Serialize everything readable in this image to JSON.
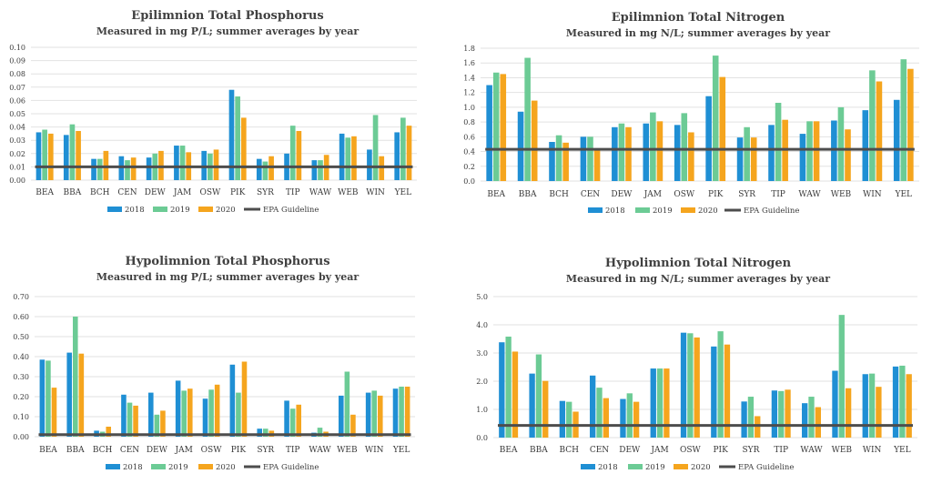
{
  "colors": {
    "2018": "#1f8fd4",
    "2019": "#6ccb95",
    "2020": "#f5a51e",
    "guideline": "#4d4d4d"
  },
  "chart_data": [
    {
      "type": "bar",
      "title": "Epilimnion Total Phosphorus",
      "subtitle": "Measured in mg P/L; summer averages by year",
      "categories": [
        "BEA",
        "BBA",
        "BCH",
        "CEN",
        "DEW",
        "JAM",
        "OSW",
        "PIK",
        "SYR",
        "TIP",
        "WAW",
        "WEB",
        "WIN",
        "YEL"
      ],
      "series": [
        {
          "name": "2018",
          "values": [
            0.036,
            0.034,
            0.016,
            0.018,
            0.017,
            0.026,
            0.022,
            0.068,
            0.016,
            0.02,
            0.015,
            0.035,
            0.023,
            0.036
          ]
        },
        {
          "name": "2019",
          "values": [
            0.038,
            0.042,
            0.016,
            0.015,
            0.02,
            0.026,
            0.02,
            0.063,
            0.014,
            0.041,
            0.015,
            0.032,
            0.049,
            0.047
          ]
        },
        {
          "name": "2020",
          "values": [
            0.035,
            0.037,
            0.022,
            0.017,
            0.022,
            0.021,
            0.023,
            0.047,
            0.018,
            0.037,
            0.019,
            0.033,
            0.018,
            0.041
          ]
        }
      ],
      "guideline": {
        "name": "EPA Guideline",
        "value": 0.01
      },
      "ylim": [
        0,
        0.1
      ],
      "yticks": [
        "0.00",
        "0.01",
        "0.02",
        "0.03",
        "0.04",
        "0.05",
        "0.06",
        "0.07",
        "0.08",
        "0.09",
        "0.10"
      ],
      "legend": [
        "2018",
        "2019",
        "2020",
        "EPA Guideline"
      ]
    },
    {
      "type": "bar",
      "title": "Epilimnion Total Nitrogen",
      "subtitle": "Measured in mg N/L; summer averages by year",
      "categories": [
        "BEA",
        "BBA",
        "BCH",
        "CEN",
        "DEW",
        "JAM",
        "OSW",
        "PIK",
        "SYR",
        "TIP",
        "WAW",
        "WEB",
        "WIN",
        "YEL"
      ],
      "series": [
        {
          "name": "2018",
          "values": [
            1.3,
            0.94,
            0.53,
            0.6,
            0.73,
            0.78,
            0.76,
            1.15,
            0.59,
            0.76,
            0.64,
            0.82,
            0.96,
            1.1
          ]
        },
        {
          "name": "2019",
          "values": [
            1.47,
            1.67,
            0.62,
            0.6,
            0.78,
            0.93,
            0.92,
            1.7,
            0.73,
            1.06,
            0.81,
            1.0,
            1.5,
            1.65
          ]
        },
        {
          "name": "2020",
          "values": [
            1.45,
            1.09,
            0.52,
            0.44,
            0.73,
            0.81,
            0.66,
            1.41,
            0.59,
            0.83,
            0.81,
            0.7,
            1.35,
            1.52
          ]
        }
      ],
      "guideline": {
        "name": "EPA Guideline",
        "value": 0.43
      },
      "ylim": [
        0,
        1.8
      ],
      "yticks": [
        "0.0",
        "0.2",
        "0.4",
        "0.6",
        "0.8",
        "1.0",
        "1.2",
        "1.4",
        "1.6",
        "1.8"
      ],
      "legend": [
        "2018",
        "2019",
        "2020",
        "EPA Guideline"
      ]
    },
    {
      "type": "bar",
      "title": "Hypolimnion Total Phosphorus",
      "subtitle": "Measured in mg P/L; summer averages by year",
      "categories": [
        "BEA",
        "BBA",
        "BCH",
        "CEN",
        "DEW",
        "JAM",
        "OSW",
        "PIK",
        "SYR",
        "TIP",
        "WAW",
        "WEB",
        "WIN",
        "YEL"
      ],
      "series": [
        {
          "name": "2018",
          "values": [
            0.385,
            0.42,
            0.03,
            0.21,
            0.22,
            0.28,
            0.19,
            0.36,
            0.04,
            0.18,
            0.02,
            0.205,
            0.22,
            0.24
          ]
        },
        {
          "name": "2019",
          "values": [
            0.38,
            0.6,
            0.025,
            0.17,
            0.11,
            0.23,
            0.235,
            0.22,
            0.04,
            0.14,
            0.045,
            0.325,
            0.23,
            0.25
          ]
        },
        {
          "name": "2020",
          "values": [
            0.245,
            0.415,
            0.05,
            0.155,
            0.13,
            0.24,
            0.26,
            0.375,
            0.03,
            0.16,
            0.025,
            0.11,
            0.205,
            0.25
          ]
        }
      ],
      "guideline": {
        "name": "EPA Guideline",
        "value": 0.01
      },
      "ylim": [
        0,
        0.7
      ],
      "yticks": [
        "0.00",
        "0.10",
        "0.20",
        "0.30",
        "0.40",
        "0.50",
        "0.60",
        "0.70"
      ],
      "legend": [
        "2018",
        "2019",
        "2020",
        "EPA Guideline"
      ]
    },
    {
      "type": "bar",
      "title": "Hypolimnion Total Nitrogen",
      "subtitle": "Measured in mg N/L; summer averages by year",
      "categories": [
        "BEA",
        "BBA",
        "BCH",
        "CEN",
        "DEW",
        "JAM",
        "OSW",
        "PIK",
        "SYR",
        "TIP",
        "WAW",
        "WEB",
        "WIN",
        "YEL"
      ],
      "series": [
        {
          "name": "2018",
          "values": [
            3.38,
            2.27,
            1.3,
            2.2,
            1.37,
            2.45,
            3.72,
            3.23,
            1.28,
            1.67,
            1.22,
            2.37,
            2.25,
            2.52
          ]
        },
        {
          "name": "2019",
          "values": [
            3.58,
            2.95,
            1.27,
            1.77,
            1.57,
            2.45,
            3.7,
            3.77,
            1.45,
            1.65,
            1.45,
            4.35,
            2.27,
            2.55
          ]
        },
        {
          "name": "2020",
          "values": [
            3.05,
            2.01,
            0.92,
            1.4,
            1.27,
            2.45,
            3.55,
            3.3,
            0.76,
            1.7,
            1.08,
            1.75,
            1.8,
            2.25
          ]
        }
      ],
      "guideline": {
        "name": "EPA Guideline",
        "value": 0.43
      },
      "ylim": [
        0,
        5.0
      ],
      "yticks": [
        "0.0",
        "1.0",
        "2.0",
        "3.0",
        "4.0",
        "5.0"
      ],
      "legend": [
        "2018",
        "2019",
        "2020",
        "EPA Guideline"
      ]
    }
  ]
}
